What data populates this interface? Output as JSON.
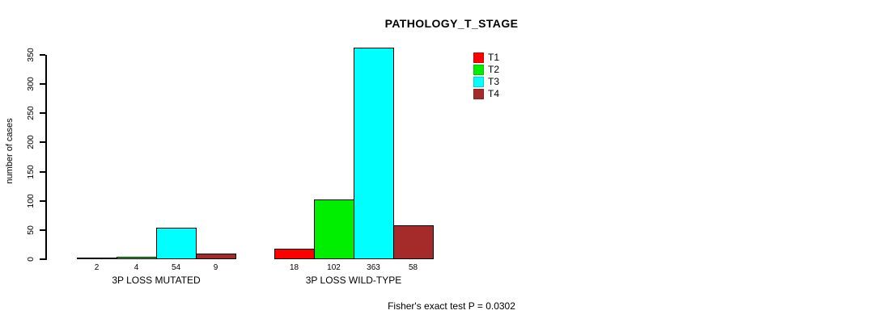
{
  "title": "PATHOLOGY_T_STAGE",
  "footnote": "Fisher's exact test P = 0.0302",
  "chart_data": {
    "type": "bar",
    "title": "PATHOLOGY_T_STAGE",
    "xlabel": "",
    "ylabel": "number of cases",
    "ylim": [
      0,
      350
    ],
    "yticks": [
      0,
      50,
      100,
      150,
      200,
      250,
      300,
      350
    ],
    "grid": false,
    "legend_position": "top-right",
    "categories": [
      "3P LOSS MUTATED",
      "3P LOSS WILD-TYPE"
    ],
    "series": [
      {
        "name": "T1",
        "color": "#FF0000",
        "values": [
          2,
          18
        ]
      },
      {
        "name": "T2",
        "color": "#00EE00",
        "values": [
          4,
          102
        ]
      },
      {
        "name": "T3",
        "color": "#00FFFF",
        "values": [
          54,
          363
        ]
      },
      {
        "name": "T4",
        "color": "#A52A2A",
        "values": [
          9,
          58
        ]
      }
    ],
    "bar_value_labels": {
      "mutated": [
        2,
        4,
        54,
        9
      ],
      "wild_type": [
        18,
        102,
        363,
        58
      ]
    },
    "annotation": "Fisher's exact test P = 0.0302"
  }
}
